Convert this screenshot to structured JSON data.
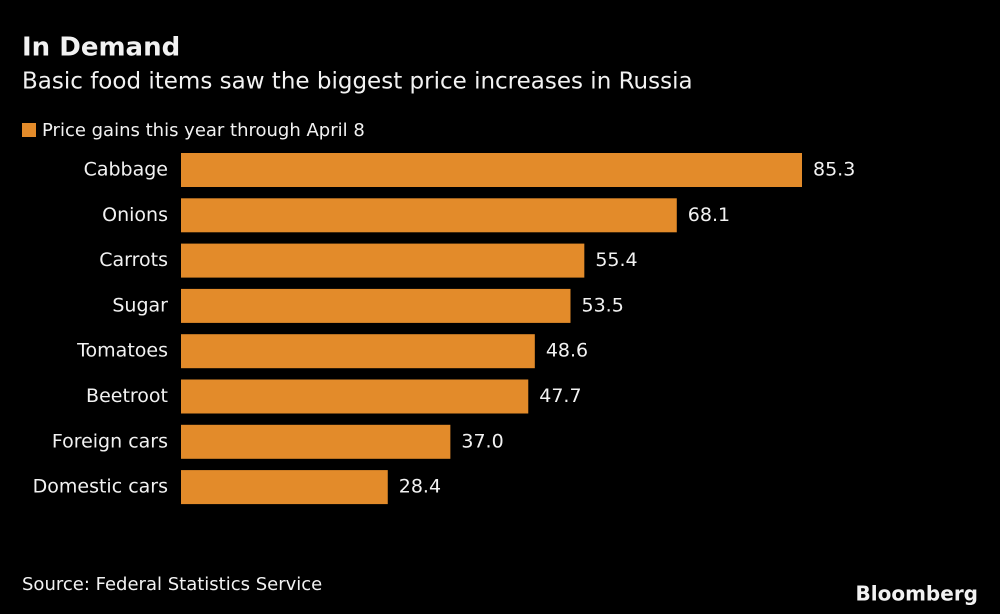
{
  "chart_data": {
    "type": "bar",
    "orientation": "horizontal",
    "title": "In Demand",
    "subtitle": "Basic food items saw the biggest price increases in Russia",
    "categories": [
      "Cabbage",
      "Onions",
      "Carrots",
      "Sugar",
      "Tomatoes",
      "Beetroot",
      "Foreign cars",
      "Domestic cars"
    ],
    "series": [
      {
        "name": "Price gains this year through April 8",
        "color": "#e38b2a",
        "values": [
          85.3,
          68.1,
          55.4,
          53.5,
          48.6,
          47.7,
          37.0,
          28.4
        ],
        "value_labels": [
          "85.3",
          "68.1",
          "55.4",
          "53.5",
          "48.6",
          "47.7",
          "37.0",
          "28.4"
        ]
      }
    ],
    "source": "Source: Federal Statistics Service",
    "brand": "Bloomberg"
  }
}
